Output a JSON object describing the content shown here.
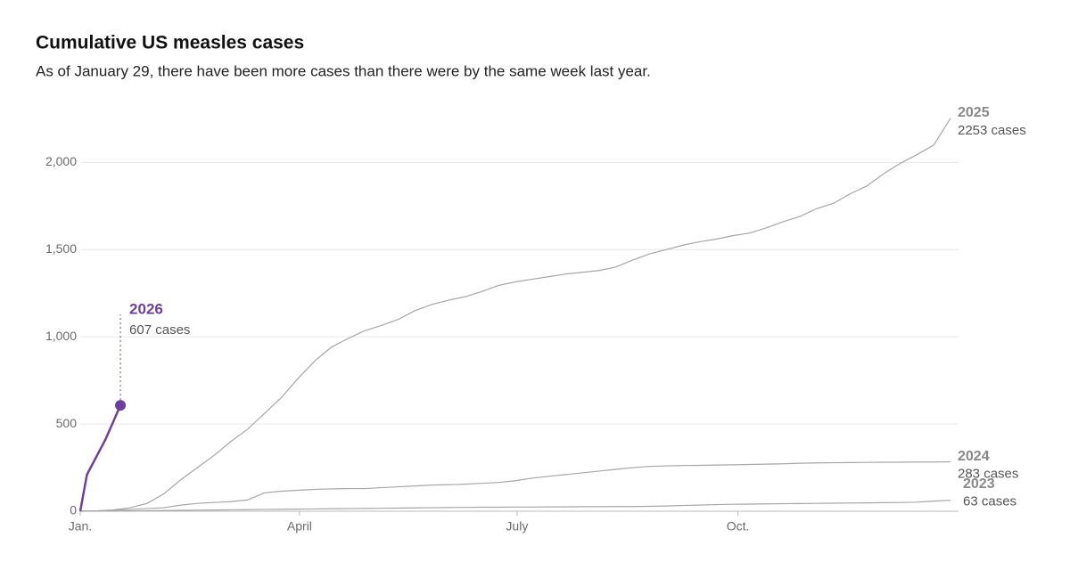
{
  "chart_data": {
    "type": "line",
    "title": "Cumulative US measles cases",
    "subtitle": "As of January 29, there have been more cases than there were by the same week last year.",
    "xlim": [
      0,
      52
    ],
    "xticks": [
      {
        "value": 0,
        "label": "Jan."
      },
      {
        "value": 13.1,
        "label": "April"
      },
      {
        "value": 26.1,
        "label": "July"
      },
      {
        "value": 39.3,
        "label": "Oct."
      }
    ],
    "ylim": [
      0,
      2200
    ],
    "yticks": [
      0,
      500,
      {
        "value": 1000,
        "label": "1,000"
      },
      {
        "value": 1500,
        "label": "1,500"
      },
      {
        "value": 2000,
        "label": "2,000"
      }
    ],
    "grid": true,
    "series": [
      {
        "name": "2023",
        "color": "#a6a6a6",
        "end_label": "63 cases",
        "x": [
          0,
          1,
          2,
          3,
          4,
          5,
          6,
          7,
          8,
          9,
          10,
          11,
          12,
          13,
          14,
          15,
          16,
          17,
          18,
          19,
          20,
          21,
          22,
          23,
          24,
          25,
          26,
          27,
          28,
          29,
          30,
          31,
          32,
          33,
          34,
          35,
          36,
          37,
          38,
          39,
          40,
          41,
          42,
          43,
          44,
          45,
          46,
          47,
          48,
          49,
          50,
          51,
          52
        ],
        "values": [
          0,
          1,
          1,
          2,
          3,
          4,
          5,
          6,
          7,
          8,
          9,
          10,
          11,
          12,
          13,
          14,
          15,
          16,
          17,
          18,
          19,
          20,
          21,
          22,
          23,
          23,
          24,
          24,
          25,
          25,
          26,
          26,
          27,
          27,
          28,
          30,
          33,
          35,
          38,
          40,
          41,
          42,
          43,
          44,
          45,
          46,
          47,
          48,
          49,
          50,
          52,
          58,
          63
        ]
      },
      {
        "name": "2024",
        "color": "#a6a6a6",
        "end_label": "283 cases",
        "x": [
          0,
          1,
          2,
          3,
          4,
          5,
          6,
          7,
          8,
          9,
          10,
          11,
          12,
          13,
          14,
          15,
          16,
          17,
          18,
          19,
          20,
          21,
          22,
          23,
          24,
          25,
          26,
          27,
          28,
          29,
          30,
          31,
          32,
          33,
          34,
          35,
          36,
          37,
          38,
          39,
          40,
          41,
          42,
          43,
          44,
          45,
          46,
          47,
          48,
          49,
          50,
          51,
          52
        ],
        "values": [
          0,
          2,
          5,
          10,
          15,
          20,
          35,
          45,
          50,
          55,
          65,
          105,
          115,
          120,
          125,
          128,
          130,
          130,
          135,
          140,
          145,
          150,
          152,
          155,
          160,
          165,
          175,
          190,
          200,
          210,
          220,
          230,
          240,
          250,
          257,
          260,
          262,
          263,
          265,
          266,
          268,
          270,
          272,
          275,
          277,
          278,
          279,
          280,
          281,
          281,
          282,
          282,
          283
        ]
      },
      {
        "name": "2025",
        "color": "#a6a6a6",
        "end_label": "2253 cases",
        "x": [
          0,
          1,
          2,
          3,
          4,
          5,
          6,
          7,
          8,
          9,
          10,
          11,
          12,
          13,
          14,
          15,
          16,
          17,
          18,
          19,
          20,
          21,
          22,
          23,
          24,
          25,
          26,
          27,
          28,
          29,
          30,
          31,
          32,
          33,
          34,
          35,
          36,
          37,
          38,
          39,
          40,
          41,
          42,
          43,
          44,
          45,
          46,
          47,
          48,
          49,
          50,
          51,
          52
        ],
        "values": [
          0,
          2,
          8,
          20,
          45,
          100,
          180,
          250,
          320,
          400,
          470,
          560,
          650,
          760,
          860,
          940,
          990,
          1035,
          1065,
          1100,
          1150,
          1185,
          1210,
          1230,
          1260,
          1295,
          1315,
          1330,
          1345,
          1360,
          1370,
          1380,
          1400,
          1440,
          1475,
          1500,
          1525,
          1545,
          1560,
          1580,
          1595,
          1625,
          1660,
          1690,
          1735,
          1765,
          1820,
          1865,
          1935,
          1995,
          2045,
          2100,
          2253
        ]
      },
      {
        "name": "2026",
        "color": "#6f3fa0",
        "end_label": "607 cases",
        "x": [
          0,
          0.4,
          1.5,
          2.4
        ],
        "values": [
          0,
          210,
          410,
          607
        ]
      }
    ]
  }
}
